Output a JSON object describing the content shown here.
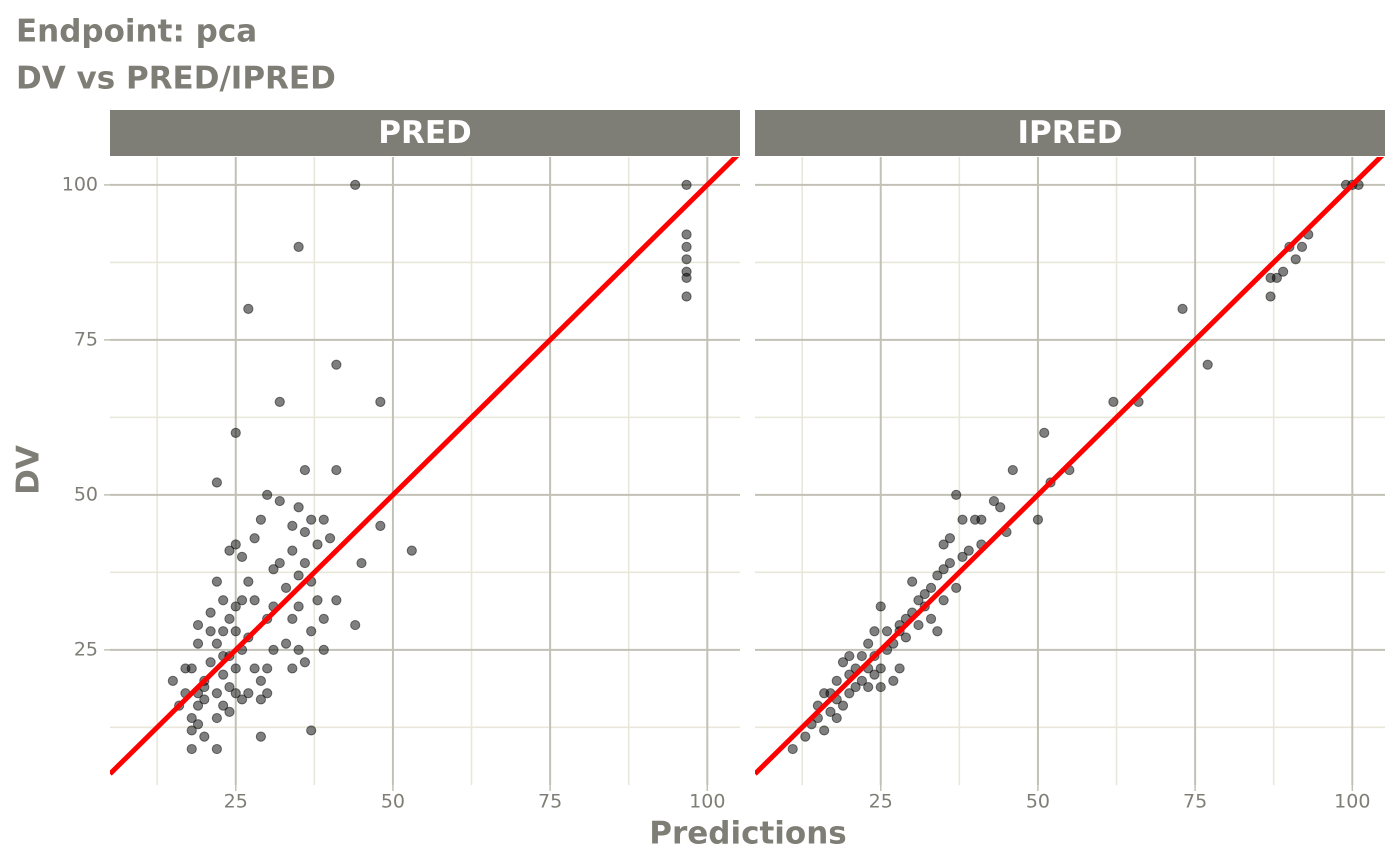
{
  "figure": {
    "title_lines": [
      "Endpoint:  pca",
      "DV vs PRED/IPRED"
    ],
    "x_label": "Predictions",
    "y_label": "DV"
  },
  "chart_data": [
    {
      "type": "scatter",
      "title": "PRED",
      "color": "#000000",
      "xlim": [
        5,
        105.2
      ],
      "ylim": [
        3.2,
        104.5
      ],
      "xticks": [
        25,
        50,
        75,
        100
      ],
      "yticks": [
        25,
        50,
        75,
        100
      ],
      "x_minor_grid": [
        12.5,
        37.5,
        62.5,
        87.5
      ],
      "y_minor_grid": [
        12.5,
        37.5,
        62.5,
        87.5
      ],
      "reference_line": {
        "slope": 1,
        "intercept": 0,
        "color": "#ff0000"
      },
      "x": [
        15,
        16,
        17,
        17,
        18,
        18,
        18,
        18,
        19,
        19,
        19,
        19,
        19,
        20,
        20,
        20,
        20,
        21,
        21,
        21,
        22,
        22,
        22,
        22,
        22,
        22,
        23,
        23,
        23,
        23,
        23,
        24,
        24,
        24,
        24,
        24,
        25,
        25,
        25,
        25,
        25,
        25,
        26,
        26,
        26,
        26,
        27,
        27,
        27,
        27,
        28,
        28,
        28,
        29,
        29,
        29,
        29,
        30,
        30,
        30,
        30,
        31,
        31,
        31,
        32,
        32,
        32,
        33,
        33,
        34,
        34,
        34,
        34,
        35,
        35,
        35,
        35,
        35,
        36,
        36,
        36,
        36,
        37,
        37,
        37,
        37,
        38,
        38,
        39,
        39,
        39,
        40,
        41,
        41,
        41,
        44,
        44,
        45,
        48,
        48,
        53,
        96.7,
        96.7,
        96.7,
        96.7,
        96.7,
        96.7,
        96.7
      ],
      "values": [
        20,
        16,
        18,
        22,
        12,
        9,
        14,
        22,
        26,
        16,
        18,
        13,
        29,
        20,
        11,
        17,
        19,
        23,
        31,
        28,
        36,
        52,
        26,
        18,
        14,
        9,
        33,
        24,
        28,
        16,
        21,
        30,
        41,
        19,
        24,
        15,
        28,
        60,
        42,
        32,
        22,
        18,
        25,
        17,
        33,
        40,
        36,
        27,
        80,
        18,
        43,
        33,
        22,
        46,
        11,
        17,
        20,
        50,
        30,
        22,
        18,
        38,
        32,
        25,
        39,
        49,
        65,
        35,
        26,
        45,
        22,
        41,
        30,
        90,
        48,
        37,
        32,
        25,
        54,
        44,
        39,
        23,
        46,
        36,
        28,
        12,
        33,
        42,
        25,
        46,
        30,
        43,
        33,
        71,
        54,
        100,
        29,
        39,
        65,
        45,
        41,
        100,
        92,
        90,
        88,
        86,
        85,
        82
      ]
    },
    {
      "type": "scatter",
      "title": "IPRED",
      "color": "#000000",
      "xlim": [
        5,
        105.2
      ],
      "ylim": [
        3.2,
        104.5
      ],
      "xticks": [
        25,
        50,
        75,
        100
      ],
      "yticks": [
        25,
        50,
        75,
        100
      ],
      "x_minor_grid": [
        12.5,
        37.5,
        62.5,
        87.5
      ],
      "y_minor_grid": [
        12.5,
        37.5,
        62.5,
        87.5
      ],
      "reference_line": {
        "slope": 1,
        "intercept": 0,
        "color": "#ff0000"
      },
      "x": [
        11,
        13,
        14,
        15,
        15,
        16,
        16,
        17,
        17,
        18,
        18,
        18,
        19,
        19,
        20,
        20,
        20,
        21,
        21,
        22,
        22,
        23,
        23,
        23,
        24,
        24,
        24,
        25,
        25,
        25,
        26,
        26,
        27,
        27,
        28,
        28,
        28,
        29,
        29,
        30,
        30,
        31,
        31,
        32,
        32,
        33,
        33,
        34,
        34,
        35,
        35,
        35,
        36,
        36,
        37,
        37,
        38,
        38,
        39,
        40,
        41,
        41,
        43,
        44,
        45,
        46,
        50,
        51,
        52,
        55,
        62,
        66,
        73,
        77,
        87,
        87,
        88,
        89,
        90,
        91,
        92,
        93,
        99,
        100,
        101
      ],
      "values": [
        9,
        11,
        13,
        16,
        14,
        12,
        18,
        15,
        18,
        17,
        20,
        14,
        16,
        23,
        18,
        21,
        24,
        22,
        19,
        20,
        24,
        22,
        26,
        19,
        21,
        28,
        24,
        22,
        19,
        32,
        25,
        28,
        20,
        26,
        29,
        22,
        28,
        30,
        27,
        36,
        31,
        29,
        33,
        34,
        32,
        30,
        35,
        37,
        28,
        38,
        42,
        33,
        43,
        39,
        50,
        35,
        46,
        40,
        41,
        46,
        42,
        46,
        49,
        48,
        44,
        54,
        46,
        60,
        52,
        54,
        65,
        65,
        80,
        71,
        85,
        82,
        85,
        86,
        90,
        88,
        90,
        92,
        100,
        100,
        100
      ]
    }
  ]
}
